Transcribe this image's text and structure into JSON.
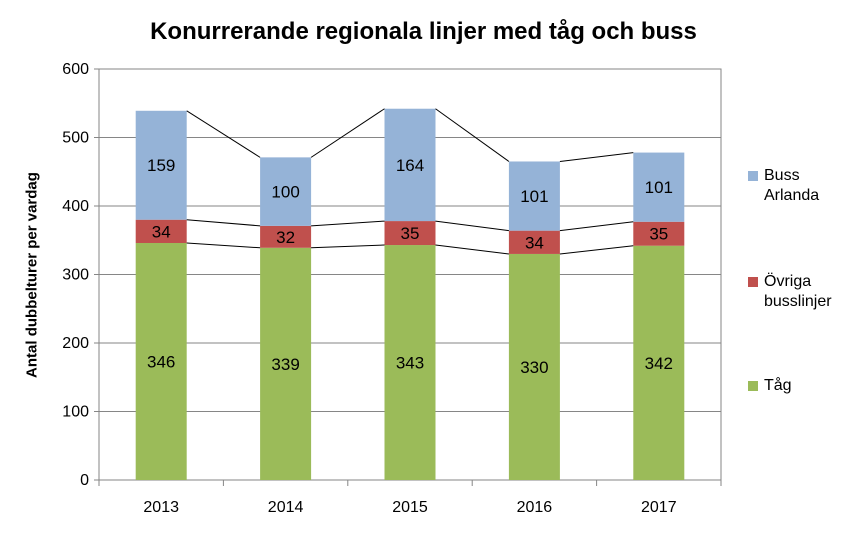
{
  "chart_data": {
    "type": "bar",
    "stacked": true,
    "title": "Konurrerande regionala linjer med tåg och buss",
    "xlabel": "",
    "ylabel": "Antal dubbelturer per vardag",
    "categories": [
      "2013",
      "2014",
      "2015",
      "2016",
      "2017"
    ],
    "ylim": [
      0,
      600
    ],
    "yticks": [
      "0",
      "100",
      "200",
      "300",
      "400",
      "500",
      "600"
    ],
    "grid": true,
    "legend_position": "right",
    "series": [
      {
        "name": "Tåg",
        "color": "#9BBB59",
        "values": [
          346,
          339,
          343,
          330,
          342
        ],
        "labels": [
          "346",
          "339",
          "343",
          "330",
          "342"
        ]
      },
      {
        "name": "Övriga busslinjer",
        "color": "#C0504D",
        "values": [
          34,
          32,
          35,
          34,
          35
        ],
        "labels": [
          "34",
          "32",
          "35",
          "34",
          "35"
        ]
      },
      {
        "name": "Buss Arlanda",
        "color": "#95B3D7",
        "values": [
          159,
          100,
          164,
          101,
          101
        ],
        "labels": [
          "159",
          "100",
          "164",
          "101",
          "101"
        ]
      }
    ]
  },
  "legend": {
    "items": [
      {
        "label_line1": "Buss",
        "label_line2": "Arlanda",
        "color": "#95B3D7"
      },
      {
        "label_line1": "Övriga",
        "label_line2": "busslinjer",
        "color": "#C0504D"
      },
      {
        "label_line1": "Tåg",
        "label_line2": "",
        "color": "#9BBB59"
      }
    ]
  }
}
